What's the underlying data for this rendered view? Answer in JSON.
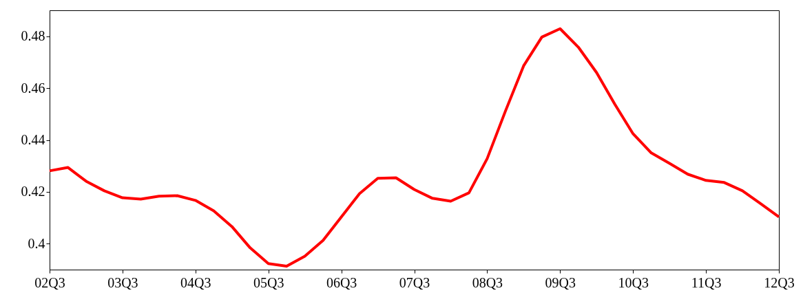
{
  "chart_data": {
    "type": "line",
    "categories": [
      "02Q3",
      null,
      null,
      null,
      "03Q3",
      null,
      null,
      null,
      "04Q3",
      null,
      null,
      null,
      "05Q3",
      null,
      null,
      null,
      "06Q3",
      null,
      null,
      null,
      "07Q3",
      null,
      null,
      null,
      "08Q3",
      null,
      null,
      null,
      "09Q3",
      null,
      null,
      null,
      "10Q3",
      null,
      null,
      null,
      "11Q3",
      null,
      null,
      null,
      "12Q3"
    ],
    "series": [
      {
        "color": "#ff0000",
        "values": [
          0.4281,
          0.4294,
          0.4241,
          0.4204,
          0.4177,
          0.4172,
          0.4183,
          0.4185,
          0.4167,
          0.4127,
          0.4066,
          0.3984,
          0.3923,
          0.3913,
          0.3952,
          0.4013,
          0.4103,
          0.4193,
          0.4252,
          0.4254,
          0.4209,
          0.4175,
          0.4164,
          0.4196,
          0.4328,
          0.4511,
          0.4686,
          0.4797,
          0.4829,
          0.4758,
          0.466,
          0.4538,
          0.4424,
          0.435,
          0.431,
          0.4268,
          0.4244,
          0.4236,
          0.4204,
          0.4154,
          0.4103
        ]
      }
    ],
    "ylim": [
      0.39,
      0.49
    ],
    "yticks": [
      0.4,
      0.42,
      0.44,
      0.46,
      0.48
    ],
    "grid": false,
    "marker": "none",
    "line_style": "solid"
  }
}
